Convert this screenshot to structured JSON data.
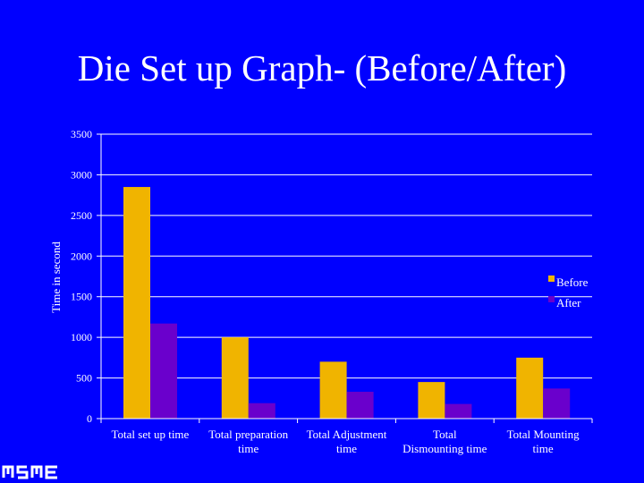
{
  "page": {
    "title": "Die Set up Graph- (Before/After)"
  },
  "colors": {
    "background": "#0000ff",
    "before": "#f0b400",
    "after": "#6a00cc",
    "axis": "#ffffff"
  },
  "chart_data": {
    "type": "bar",
    "title": "",
    "xlabel": "",
    "ylabel": "Time in second",
    "ylim": [
      0,
      3500
    ],
    "yticks": [
      0,
      500,
      1000,
      1500,
      2000,
      2500,
      3000,
      3500
    ],
    "grid": true,
    "legend_position": "right",
    "categories": [
      [
        "Total set up time"
      ],
      [
        "Total preparation",
        "time"
      ],
      [
        "Total Adjustment",
        "time"
      ],
      [
        "Total",
        "Dismounting time"
      ],
      [
        "Total Mounting",
        "time"
      ]
    ],
    "series": [
      {
        "name": "Before",
        "values": [
          2850,
          1000,
          700,
          450,
          750
        ]
      },
      {
        "name": "After",
        "values": [
          1170,
          190,
          330,
          180,
          370
        ]
      }
    ]
  }
}
